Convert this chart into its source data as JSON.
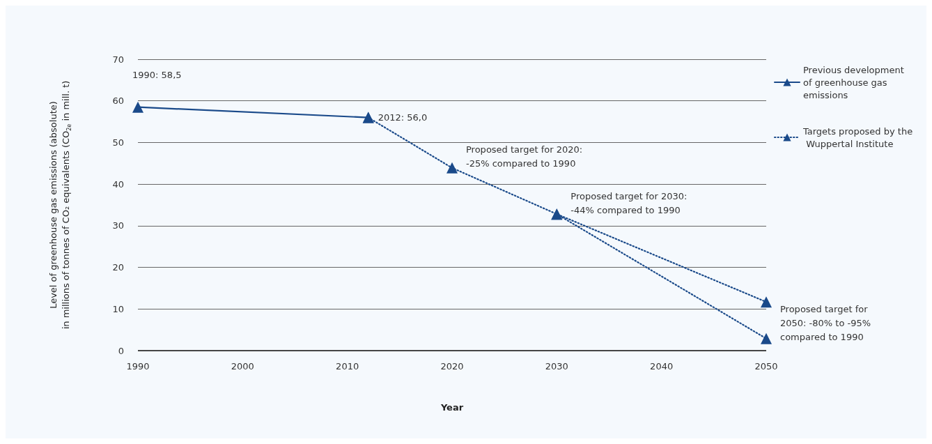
{
  "chart_data": {
    "type": "line",
    "xlabel": "Year",
    "ylabel": "Level of greenhouse gas emissions (absolute)\nin millions of tonnes of CO₂ equivalents (CO$_{2e}$ in mill. t)",
    "xlim": [
      1990,
      2050
    ],
    "xticks": [
      1990,
      2000,
      2010,
      2020,
      2030,
      2040,
      2050
    ],
    "ylim": [
      0,
      70
    ],
    "yticks": [
      0,
      10,
      20,
      30,
      40,
      50,
      60,
      70
    ],
    "grid": "y",
    "legend": "top right",
    "marker": "triangle",
    "series": [
      {
        "name": "Previous development of greenhouse gas emissions",
        "color": "#1a4a8a",
        "line_style": "solid",
        "x": [
          1990,
          2012
        ],
        "values": [
          58.5,
          56.0
        ]
      },
      {
        "name": "Targets proposed by the Wuppertal Institute",
        "color": "#1a4a8a",
        "line_style": "dotted",
        "x": [
          2012,
          2020,
          2030,
          2050
        ],
        "values": [
          56.0,
          43.9,
          32.8,
          11.7
        ]
      },
      {
        "color": "#1a4a8a",
        "line_style": "dotted",
        "x": [
          2030,
          2050
        ],
        "values": [
          32.8,
          2.9
        ]
      }
    ],
    "annotations": [
      {
        "text": "1990: 58,5",
        "x": 1990,
        "y": 58.5
      },
      {
        "text": "2012: 56,0",
        "x": 2012,
        "y": 56.0
      },
      {
        "text": "Proposed target for 2020:\n-25% compared to 1990",
        "x": 2020,
        "y": 43.9
      },
      {
        "text": "Proposed target for 2030:\n-44% compared to 1990",
        "x": 2030,
        "y": 32.8
      },
      {
        "text": "Proposed target for\n2050: -80% to -95%\ncompared to 1990",
        "x": 2050,
        "y": 11.7
      }
    ]
  }
}
